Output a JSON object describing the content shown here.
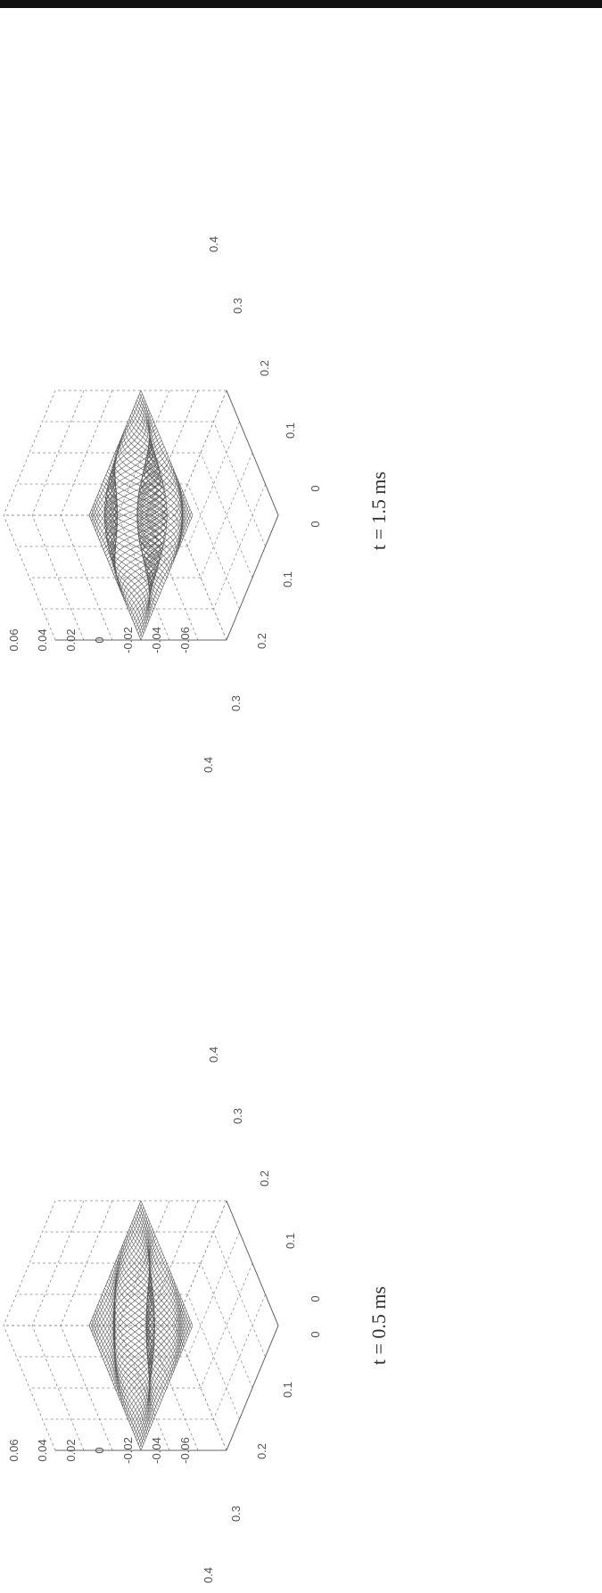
{
  "figure": {
    "frame_color": "#111111",
    "grid_color": "#8a8a8a",
    "mesh_color": "#5a5a5a"
  },
  "chart_data": [
    {
      "type": "surface",
      "caption": "t = 0.5 ms",
      "z_ticks": [
        "0.06",
        "0.04",
        "0.02",
        "0",
        "-0.02",
        "-0.04",
        "-0.06"
      ],
      "zlim": [
        -0.06,
        0.06
      ],
      "x_ticks": [
        "0.4",
        "0.3",
        "0.2",
        "0.1",
        "0"
      ],
      "y_ticks": [
        "0",
        "0.1",
        "0.2",
        "0.3",
        "0.4"
      ],
      "xlim": [
        0,
        0.4
      ],
      "ylim": [
        0,
        0.4
      ],
      "peak_amplitude": 0.015,
      "grid": true
    },
    {
      "type": "surface",
      "caption": "t = 1.5 ms",
      "z_ticks": [
        "0.06",
        "0.04",
        "0.02",
        "0",
        "-0.02",
        "-0.04",
        "-0.06"
      ],
      "zlim": [
        -0.06,
        0.06
      ],
      "x_ticks": [
        "0.4",
        "0.3",
        "0.2",
        "0.1",
        "0"
      ],
      "y_ticks": [
        "0",
        "0.1",
        "0.2",
        "0.3",
        "0.4"
      ],
      "xlim": [
        0,
        0.4
      ],
      "ylim": [
        0,
        0.4
      ],
      "peak_amplitude": 0.03,
      "grid": true
    }
  ]
}
